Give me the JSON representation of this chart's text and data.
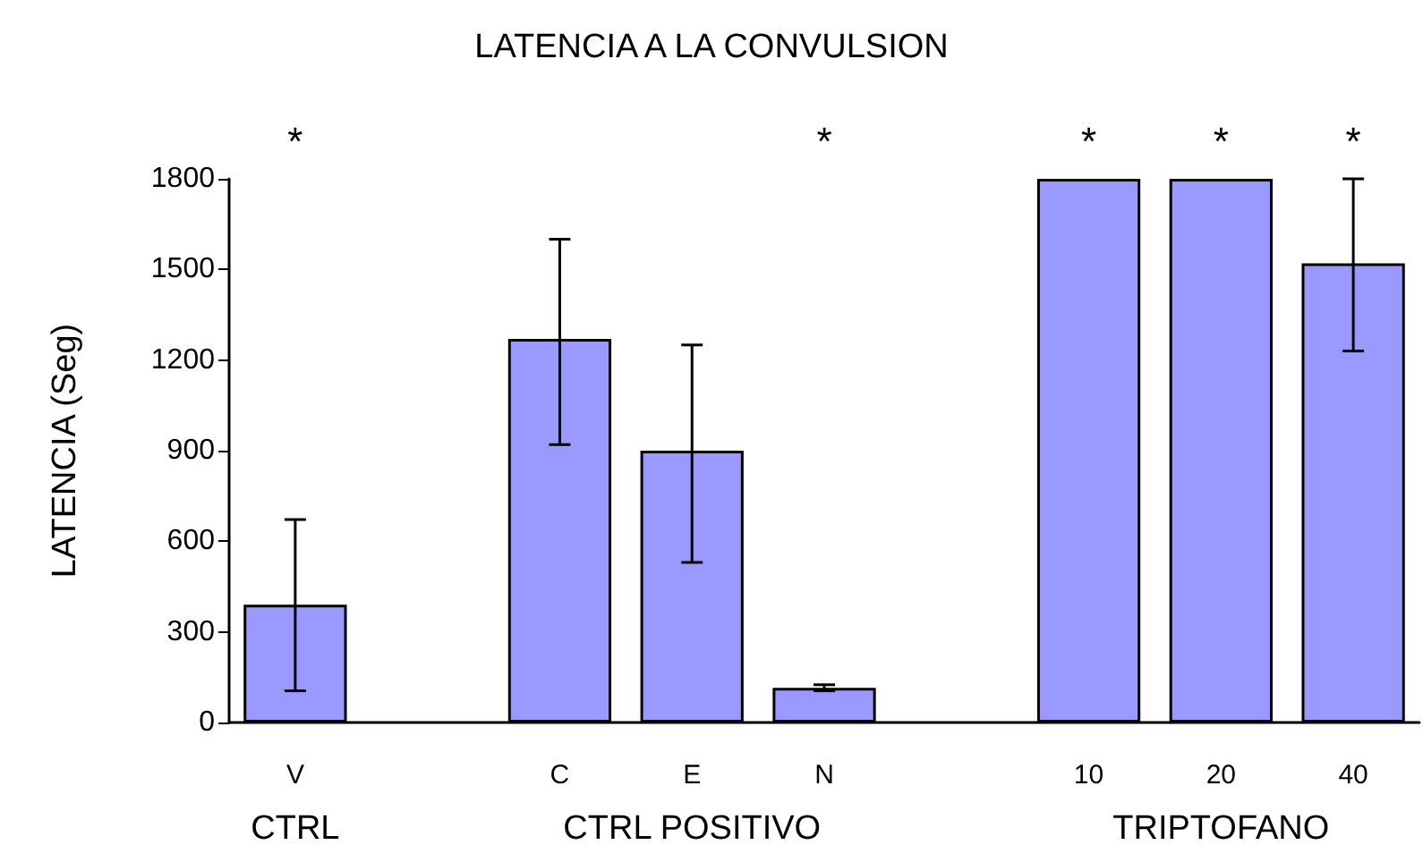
{
  "chart_data": {
    "type": "bar",
    "title": "LATENCIA A LA CONVULSION",
    "ylabel": "LATENCIA (Seg)",
    "categories": [
      "V",
      null,
      "C",
      "E",
      "N",
      null,
      "10",
      "20",
      "40"
    ],
    "values": [
      390,
      null,
      1270,
      900,
      115,
      null,
      1800,
      1800,
      1520
    ],
    "errors": [
      [
        105,
        672
      ],
      null,
      [
        920,
        1600
      ],
      [
        530,
        1250
      ],
      [
        105,
        125
      ],
      null,
      null,
      null,
      [
        1230,
        1800
      ]
    ],
    "color": "#9999ff",
    "ylim": [
      0,
      1800
    ],
    "yticks": [
      0,
      300,
      600,
      900,
      1200,
      1500,
      1800
    ],
    "grid": false,
    "annotations": [
      "*",
      "*",
      "*",
      "*",
      "*",
      "CTRL",
      "CTRL POSITIVO",
      "TRIPTOFANO"
    ]
  }
}
